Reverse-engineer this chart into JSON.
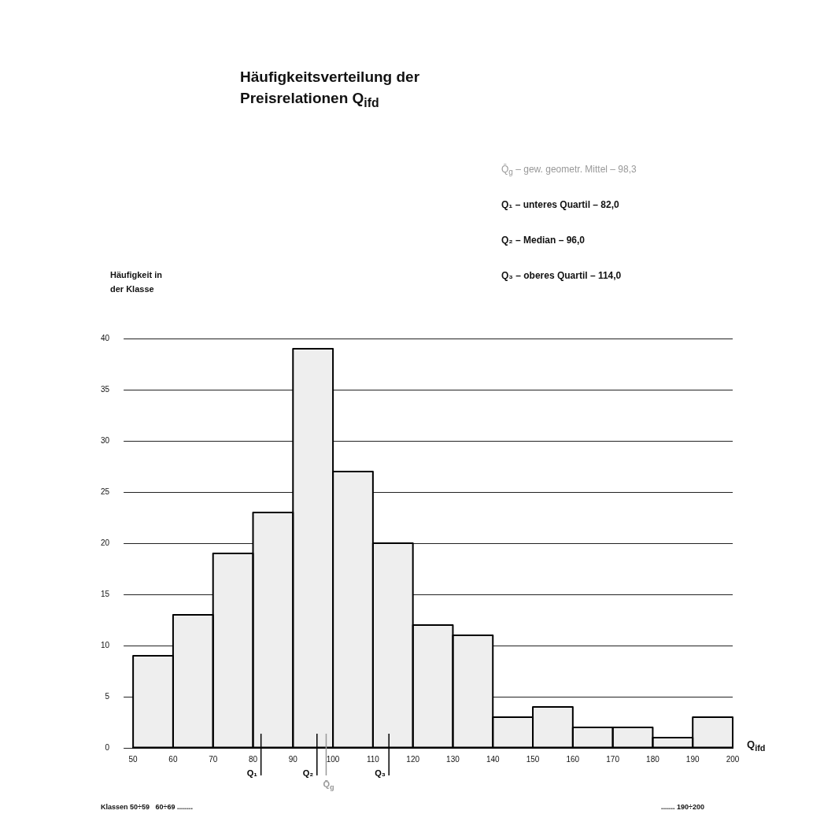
{
  "chart_data": {
    "type": "histogram",
    "title": "Häufigkeitsverteilung der Preisrelationen Q$_{ifd}$",
    "ylabel": "Häufigkeit in der Klasse",
    "xlabel": "Q$_{ifd}$",
    "bins": [
      50,
      60,
      70,
      80,
      90,
      100,
      110,
      120,
      130,
      140,
      150,
      160,
      170,
      180,
      190,
      200
    ],
    "values": [
      9,
      13,
      19,
      23,
      39,
      27,
      20,
      12,
      11,
      3,
      4,
      2,
      2,
      1,
      3
    ],
    "color": "#eeeeee",
    "xlim": [
      50,
      200
    ],
    "xticks": [
      50,
      60,
      70,
      80,
      90,
      100,
      110,
      120,
      130,
      140,
      150,
      160,
      170,
      180,
      190,
      200
    ],
    "ylim": [
      0,
      40
    ],
    "yticks": [
      0,
      5,
      10,
      15,
      20,
      25,
      30,
      35,
      40
    ],
    "grid": "y",
    "ref_lines": [
      {
        "axis": "x",
        "value": 82,
        "label": "Q₁",
        "color": "#000000"
      },
      {
        "axis": "x",
        "value": 96,
        "label": "Q₂",
        "color": "#000000"
      },
      {
        "axis": "x",
        "value": 98.3,
        "label": "Q̄$_{g}$",
        "color": "#999999"
      },
      {
        "axis": "x",
        "value": 114,
        "label": "Q₃",
        "color": "#000000"
      }
    ],
    "annotations": [
      "Q̄$_{g}$ – gew. geometr. Mittel – 98,3",
      "Q₁ – unteres Quartil – 82,0",
      "Q₂ – Median – 96,0",
      "Q₃ – oberes Quartil – 114,0",
      "Klassen 50÷59   60÷69 ........",
      "....... 190÷200"
    ]
  }
}
